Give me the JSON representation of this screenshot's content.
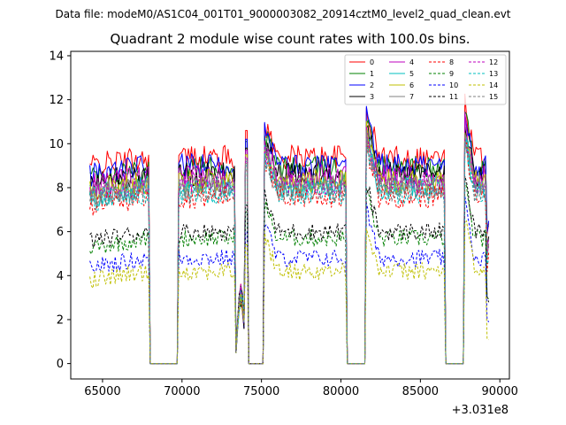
{
  "suptitle": "Data file: modeM0/AS1C04_001T01_9000003082_20914cztM0_level2_quad_clean.evt",
  "chart_data": {
    "type": "line",
    "title": "Quadrant 2 module wise count rates with 100.0s bins.",
    "xlabel": "",
    "ylabel": "",
    "x_offset_label": "+3.031e8",
    "xlim": [
      63000,
      90600
    ],
    "ylim": [
      -0.7,
      14.2
    ],
    "xticks": [
      65000,
      70000,
      75000,
      80000,
      85000,
      90000
    ],
    "xtick_labels": [
      "65000",
      "70000",
      "75000",
      "80000",
      "85000",
      "90000"
    ],
    "yticks": [
      0,
      2,
      4,
      6,
      8,
      10,
      12,
      14
    ],
    "ytick_labels": [
      "0",
      "2",
      "4",
      "6",
      "8",
      "10",
      "12",
      "14"
    ],
    "legend_position": "top-right",
    "segments": [
      {
        "start": 64200,
        "end": 68000,
        "kind": "on"
      },
      {
        "start": 68000,
        "end": 69800,
        "kind": "gap"
      },
      {
        "start": 69800,
        "end": 73400,
        "kind": "on"
      },
      {
        "start": 73400,
        "end": 74000,
        "kind": "blip"
      },
      {
        "start": 74000,
        "end": 74200,
        "kind": "on"
      },
      {
        "start": 74200,
        "end": 75200,
        "kind": "gap"
      },
      {
        "start": 75200,
        "end": 80400,
        "kind": "on"
      },
      {
        "start": 80400,
        "end": 81600,
        "kind": "gap"
      },
      {
        "start": 81600,
        "end": 86600,
        "kind": "on"
      },
      {
        "start": 86600,
        "end": 87800,
        "kind": "gap"
      },
      {
        "start": 87800,
        "end": 89400,
        "kind": "on"
      }
    ],
    "series": [
      {
        "name": "0",
        "color": "#ff0000",
        "dash": "solid",
        "level": 9.4
      },
      {
        "name": "1",
        "color": "#008000",
        "dash": "solid",
        "level": 8.9
      },
      {
        "name": "2",
        "color": "#0000ff",
        "dash": "solid",
        "level": 9.0
      },
      {
        "name": "3",
        "color": "#000000",
        "dash": "solid",
        "level": 8.6
      },
      {
        "name": "4",
        "color": "#bf00bf",
        "dash": "solid",
        "level": 8.5
      },
      {
        "name": "5",
        "color": "#00bfbf",
        "dash": "solid",
        "level": 8.0
      },
      {
        "name": "6",
        "color": "#bfbf00",
        "dash": "solid",
        "level": 8.3
      },
      {
        "name": "7",
        "color": "#808080",
        "dash": "solid",
        "level": 8.1
      },
      {
        "name": "8",
        "color": "#ff0000",
        "dash": "dashed",
        "level": 7.6
      },
      {
        "name": "9",
        "color": "#008000",
        "dash": "dashed",
        "level": 5.7
      },
      {
        "name": "10",
        "color": "#0000ff",
        "dash": "dashed",
        "level": 4.8
      },
      {
        "name": "11",
        "color": "#000000",
        "dash": "dashed",
        "level": 6.0
      },
      {
        "name": "12",
        "color": "#bf00bf",
        "dash": "dashed",
        "level": 8.2
      },
      {
        "name": "13",
        "color": "#00bfbf",
        "dash": "dashed",
        "level": 7.8
      },
      {
        "name": "14",
        "color": "#bfbf00",
        "dash": "dashed",
        "level": 4.2
      },
      {
        "name": "15",
        "color": "#808080",
        "dash": "dashed",
        "level": 7.9
      }
    ]
  }
}
